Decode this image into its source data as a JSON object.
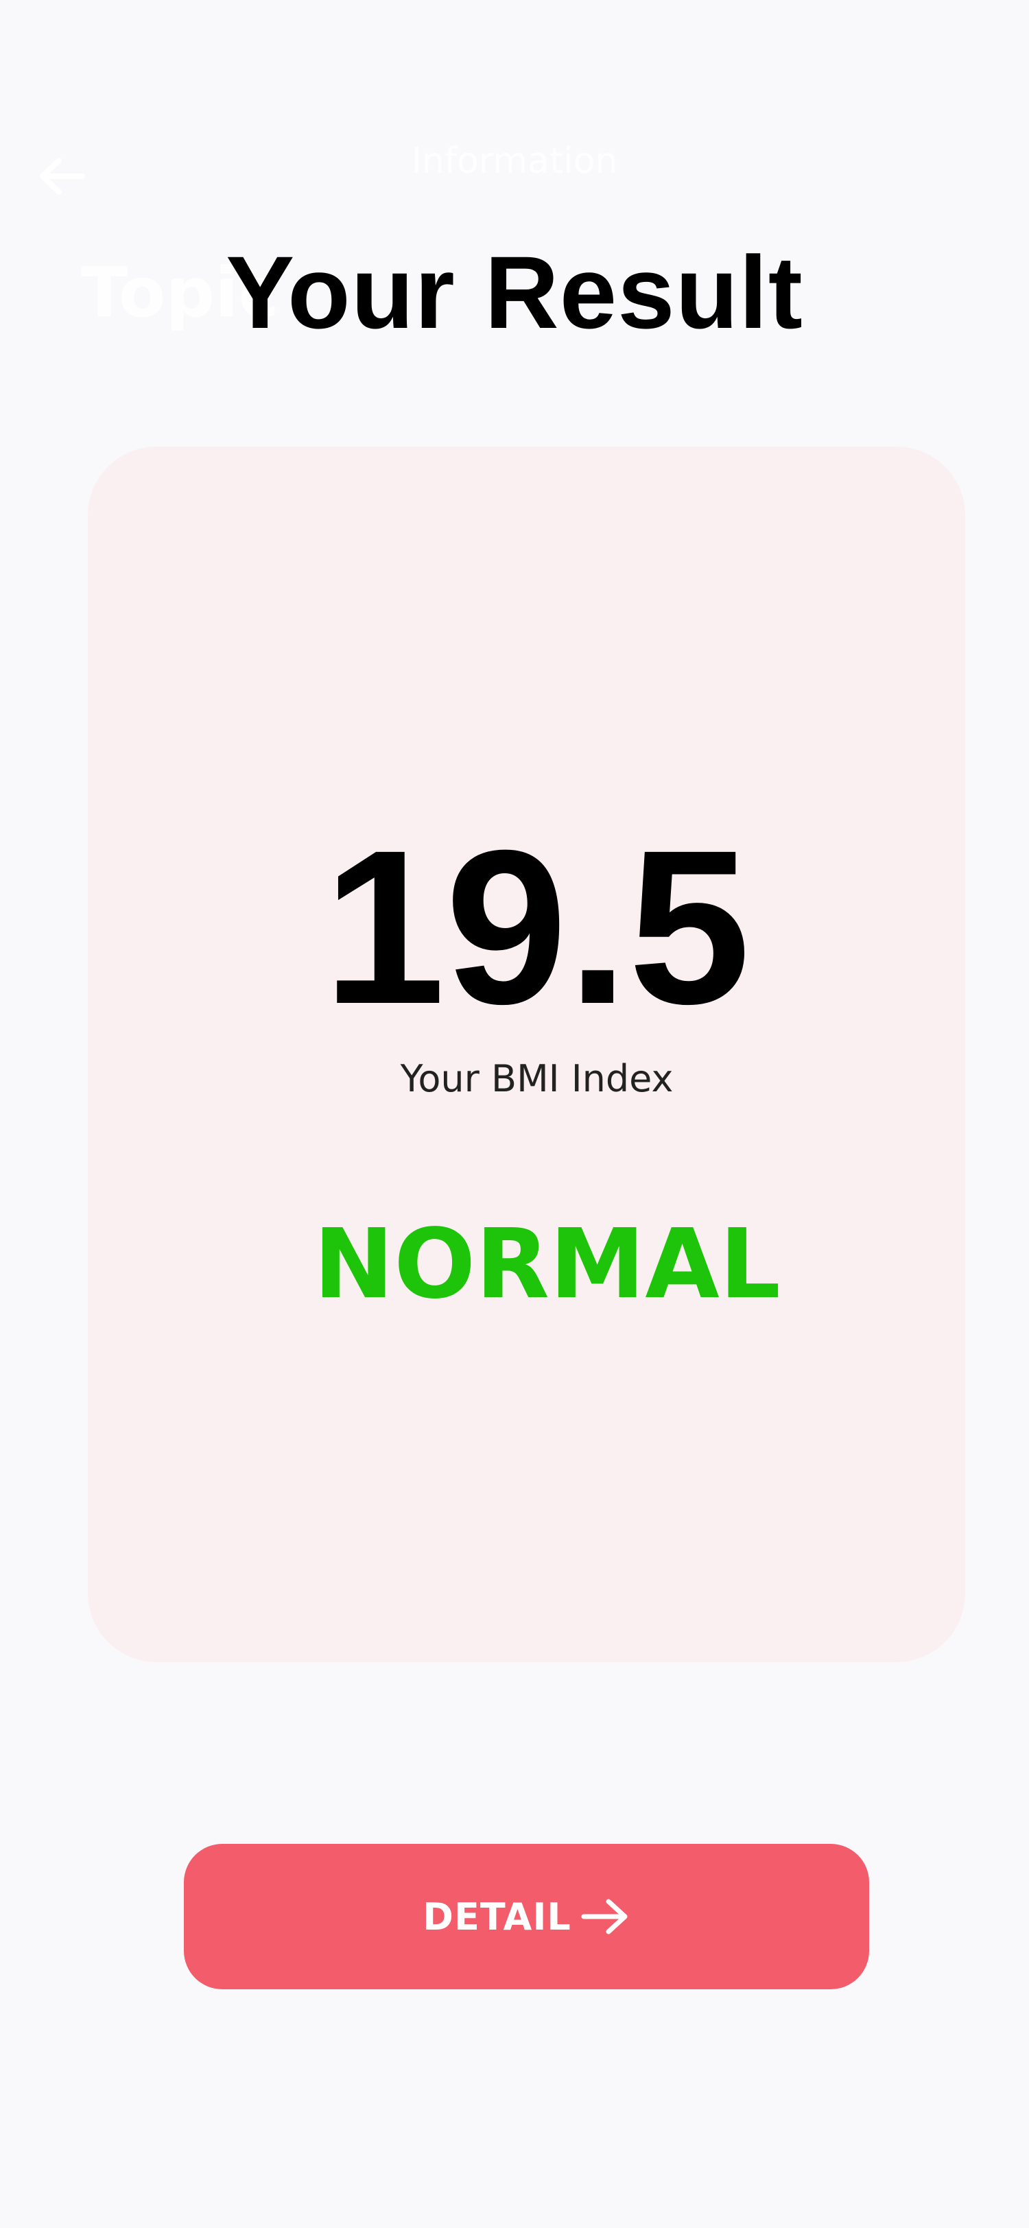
{
  "nav": {
    "title": "Information",
    "back_icon": "arrow-left-icon"
  },
  "topic_label": "Topic",
  "page_title": "Your Result",
  "result": {
    "bmi_value": "19.5",
    "bmi_caption": "Your BMI Index",
    "status": "NORMAL"
  },
  "detail_button": {
    "label": "DETAIL",
    "icon": "arrow-right-icon"
  },
  "colors": {
    "background": "#f9f9fb",
    "card": "#fbf0f1",
    "status_normal": "#1ec40a",
    "accent": "#f35c6b"
  }
}
